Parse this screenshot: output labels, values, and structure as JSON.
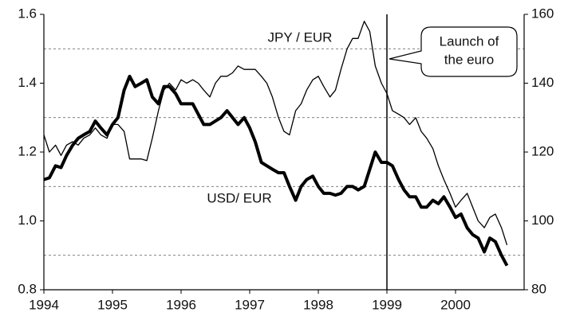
{
  "chart_data": {
    "type": "line",
    "x": [
      1994,
      1994.08,
      1994.17,
      1994.25,
      1994.33,
      1994.42,
      1994.5,
      1994.58,
      1994.67,
      1994.75,
      1994.83,
      1994.92,
      1995,
      1995.08,
      1995.17,
      1995.25,
      1995.33,
      1995.42,
      1995.5,
      1995.58,
      1995.67,
      1995.75,
      1995.83,
      1995.92,
      1996,
      1996.08,
      1996.17,
      1996.25,
      1996.33,
      1996.42,
      1996.5,
      1996.58,
      1996.67,
      1996.75,
      1996.83,
      1996.92,
      1997,
      1997.08,
      1997.17,
      1997.25,
      1997.33,
      1997.42,
      1997.5,
      1997.58,
      1997.67,
      1997.75,
      1997.83,
      1997.92,
      1998,
      1998.08,
      1998.17,
      1998.25,
      1998.33,
      1998.42,
      1998.5,
      1998.58,
      1998.67,
      1998.75,
      1998.83,
      1998.92,
      1999,
      1999.08,
      1999.17,
      1999.25,
      1999.33,
      1999.42,
      1999.5,
      1999.58,
      1999.67,
      1999.75,
      1999.83,
      1999.92,
      2000,
      2000.08,
      2000.17,
      2000.25,
      2000.33,
      2000.42,
      2000.5,
      2000.58,
      2000.67,
      2000.75
    ],
    "series": [
      {
        "name": "USD/ EUR",
        "color": "#000000",
        "axis": "y",
        "values": [
          1.12,
          1.125,
          1.16,
          1.155,
          1.19,
          1.22,
          1.24,
          1.25,
          1.26,
          1.29,
          1.27,
          1.25,
          1.28,
          1.3,
          1.38,
          1.42,
          1.39,
          1.4,
          1.41,
          1.36,
          1.34,
          1.39,
          1.39,
          1.37,
          1.34,
          1.34,
          1.34,
          1.31,
          1.28,
          1.28,
          1.29,
          1.3,
          1.32,
          1.3,
          1.28,
          1.3,
          1.27,
          1.23,
          1.17,
          1.16,
          1.15,
          1.14,
          1.14,
          1.1,
          1.06,
          1.1,
          1.12,
          1.13,
          1.1,
          1.08,
          1.08,
          1.075,
          1.08,
          1.1,
          1.1,
          1.09,
          1.1,
          1.15,
          1.2,
          1.17,
          1.17,
          1.16,
          1.12,
          1.09,
          1.07,
          1.07,
          1.04,
          1.04,
          1.06,
          1.05,
          1.07,
          1.04,
          1.01,
          1.02,
          0.98,
          0.96,
          0.95,
          0.91,
          0.95,
          0.94,
          0.9,
          0.87
        ]
      },
      {
        "name": "JPY / EUR",
        "color": "#000000",
        "axis": "y2",
        "values": [
          125,
          120,
          122,
          119,
          122,
          123,
          122,
          124,
          125,
          127,
          125,
          124,
          128,
          128,
          126,
          118,
          118,
          118,
          117.5,
          124,
          132,
          138,
          140,
          138,
          141,
          140,
          141,
          140,
          138,
          136,
          140,
          142,
          142,
          143,
          145,
          144,
          144,
          144,
          142,
          140,
          136,
          130,
          126,
          125,
          132,
          134,
          138,
          141,
          142,
          139,
          136,
          138,
          144,
          150,
          153,
          153,
          158,
          155,
          145,
          140,
          137,
          132,
          131,
          130,
          128,
          130,
          126,
          124,
          121,
          116,
          112,
          108,
          104,
          106,
          108,
          104,
          100,
          98,
          101,
          102,
          98,
          93
        ]
      }
    ],
    "xlim": [
      1994,
      2001
    ],
    "xticks": [
      1994,
      1995,
      1996,
      1997,
      1998,
      1999,
      2000
    ],
    "ylim": [
      0.8,
      1.6
    ],
    "yticks": [
      0.8,
      {
        "value": 1,
        "label": "1.0"
      },
      1.2,
      1.4,
      1.6
    ],
    "y2lim": [
      80,
      160
    ],
    "y2ticks": [
      80,
      100,
      120,
      140,
      160
    ],
    "grid": true,
    "annotation": {
      "x": 1999,
      "lines": [
        "Launch of",
        "the euro"
      ]
    }
  }
}
